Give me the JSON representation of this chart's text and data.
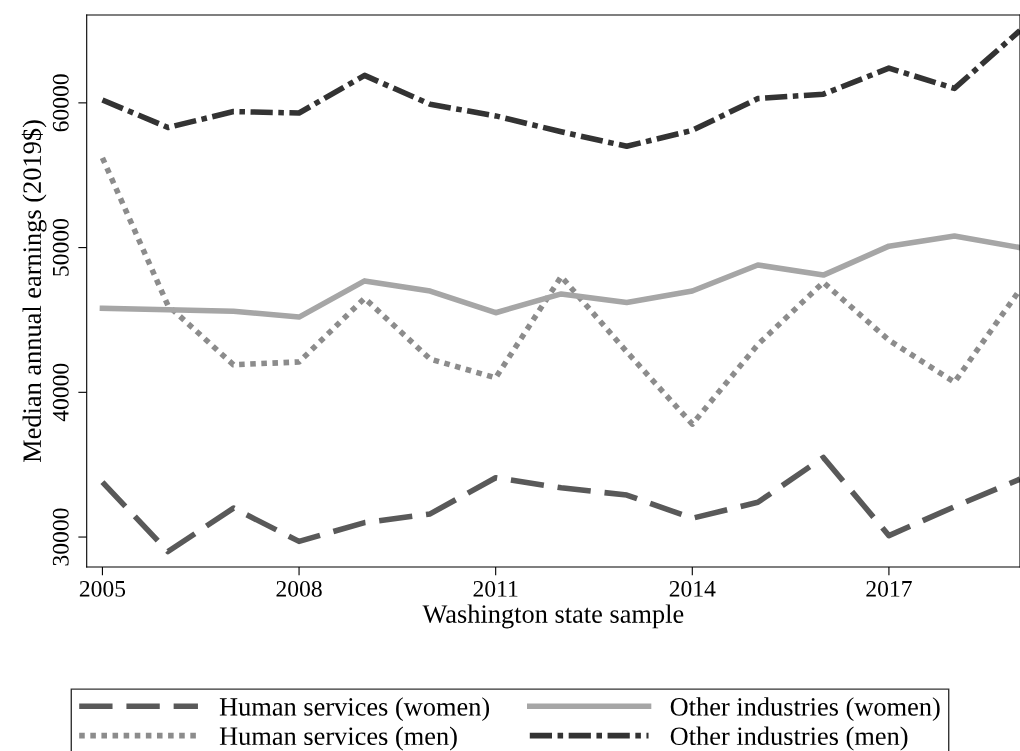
{
  "chart_data": {
    "type": "line",
    "xlabel": "Washington state sample",
    "ylabel": "Median annual earnings (2019$)",
    "x": [
      2005,
      2006,
      2007,
      2008,
      2009,
      2010,
      2011,
      2012,
      2013,
      2014,
      2015,
      2016,
      2017,
      2018,
      2019
    ],
    "xlim": [
      2004.76,
      2019
    ],
    "xticks": [
      2005,
      2008,
      2011,
      2014,
      2017
    ],
    "ylim": [
      27930,
      66070
    ],
    "yticks": [
      30000,
      40000,
      50000,
      60000
    ],
    "grid": false,
    "legend": "bottom",
    "marker": "none",
    "series": [
      {
        "name": "Human services (women)",
        "color": "#595959",
        "line_style": "dashed",
        "values": [
          33800,
          29000,
          32000,
          29700,
          31000,
          31600,
          34100,
          33400,
          32900,
          31300,
          32400,
          35500,
          30100,
          32100,
          34000
        ]
      },
      {
        "name": "Human services (men)",
        "color": "#8c8c8c",
        "line_style": "dotted",
        "values": [
          56200,
          46000,
          41900,
          42100,
          46500,
          42300,
          41000,
          48000,
          42800,
          37800,
          43300,
          47600,
          43600,
          40700,
          47100
        ]
      },
      {
        "name": "Other industries (women)",
        "color": "#a6a6a6",
        "line_style": "solid",
        "values": [
          45800,
          45700,
          45600,
          45200,
          47700,
          47000,
          45500,
          46800,
          46200,
          47000,
          48800,
          48100,
          50100,
          50800,
          50000
        ]
      },
      {
        "name": "Other industries (men)",
        "color": "#333333",
        "line_style": "dashdot",
        "values": [
          60200,
          58300,
          59400,
          59300,
          61900,
          59900,
          59100,
          58000,
          57000,
          58100,
          60300,
          60600,
          62400,
          61000,
          65000
        ]
      }
    ]
  }
}
